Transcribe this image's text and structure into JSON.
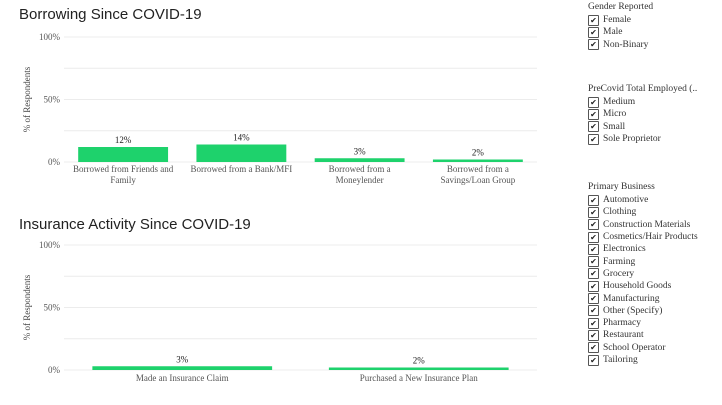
{
  "colors": {
    "bar": "#1ed26c",
    "grid": "#ececec",
    "axis_text": "#555555"
  },
  "chart_data": [
    {
      "type": "bar",
      "title": "Borrowing Since COVID-19",
      "ylabel": "% of Respondents",
      "yticks": [
        "100%",
        "50%",
        "0%"
      ],
      "ylim": [
        0,
        100
      ],
      "categories": [
        [
          "Borrowed from Friends and",
          "Family"
        ],
        [
          "Borrowed from a Bank/MFI"
        ],
        [
          "Borrowed from a",
          "Moneylender"
        ],
        [
          "Borrowed from a",
          "Savings/Loan Group"
        ]
      ],
      "values": [
        12,
        14,
        3,
        2
      ],
      "labels": [
        "12%",
        "14%",
        "3%",
        "2%"
      ],
      "grid": true
    },
    {
      "type": "bar",
      "title": "Insurance Activity Since COVID-19",
      "ylabel": "% of Respondents",
      "yticks": [
        "100%",
        "50%",
        "0%"
      ],
      "ylim": [
        0,
        100
      ],
      "categories": [
        [
          "Made an Insurance Claim"
        ],
        [
          "Purchased a New Insurance Plan"
        ]
      ],
      "values": [
        3,
        2
      ],
      "labels": [
        "3%",
        "2%"
      ],
      "grid": true
    }
  ],
  "filters": [
    {
      "title": "Gender Reported",
      "items": [
        "Female",
        "Male",
        "Non-Binary"
      ]
    },
    {
      "title": "PreCovid Total Employed (..",
      "items": [
        "Medium",
        "Micro",
        "Small",
        "Sole Proprietor"
      ]
    },
    {
      "title": "Primary Business",
      "items": [
        "Automotive",
        "Clothing",
        "Construction Materials",
        "Cosmetics/Hair Products",
        "Electronics",
        "Farming",
        "Grocery",
        "Household Goods",
        "Manufacturing",
        "Other (Specify)",
        "Pharmacy",
        "Restaurant",
        "School Operator",
        "Tailoring"
      ]
    }
  ]
}
